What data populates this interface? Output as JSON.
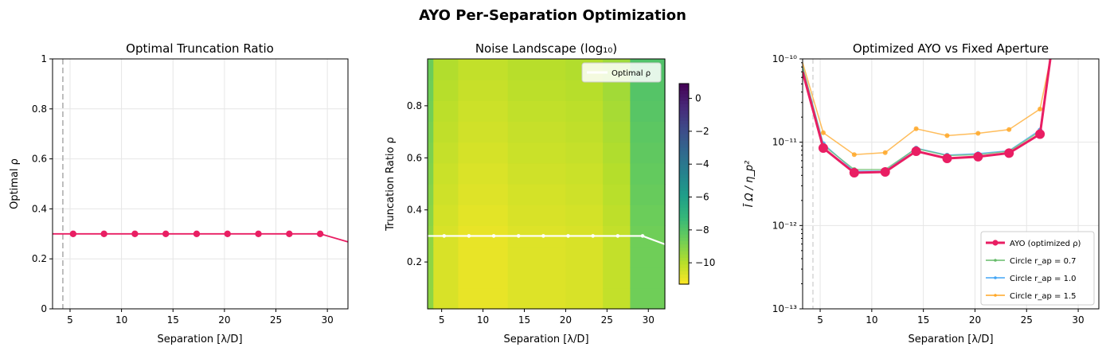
{
  "figure_title": "AYO Per-Separation Optimization",
  "chart_data": [
    {
      "type": "line",
      "title": "Optimal Truncation Ratio",
      "xlabel": "Separation [λ/D]",
      "ylabel": "Optimal ρ",
      "xlim": [
        3.3,
        32
      ],
      "ylim": [
        0,
        1
      ],
      "xticks": [
        5,
        10,
        15,
        20,
        25,
        30
      ],
      "yticks": [
        0.0,
        0.2,
        0.4,
        0.6,
        0.8,
        1.0
      ],
      "grid": true,
      "vline_x": 4.3,
      "line_color": "#e91e63",
      "series": [
        {
          "x": [
            3.3,
            5.3,
            8.3,
            11.3,
            14.3,
            17.3,
            20.3,
            23.3,
            26.3,
            29.3,
            32
          ],
          "y": [
            0.3,
            0.3,
            0.3,
            0.3,
            0.3,
            0.3,
            0.3,
            0.3,
            0.3,
            0.3,
            0.268
          ],
          "markers_x": [
            5.3,
            8.3,
            11.3,
            14.3,
            17.3,
            20.3,
            23.3,
            26.3,
            29.3
          ]
        }
      ]
    },
    {
      "type": "heatmap",
      "title": "Noise Landscape (log₁₀)",
      "xlabel": "Separation [λ/D]",
      "ylabel": "Truncation Ratio ρ",
      "xlim": [
        3.3,
        32
      ],
      "ylim": [
        0.02,
        0.98
      ],
      "xticks": [
        5,
        10,
        15,
        20,
        25,
        30
      ],
      "yticks": [
        0.2,
        0.4,
        0.6,
        0.8
      ],
      "colorbar_ticks": [
        0,
        -2,
        -4,
        -6,
        -8,
        -10
      ],
      "colorbar_range": [
        -11.3,
        0.9
      ],
      "colormap": "viridis_r",
      "column_edges": [
        3.3,
        4.0,
        7.0,
        13.0,
        20.0,
        24.5,
        27.8,
        32.0
      ],
      "column_values": [
        -9.2,
        -10.6,
        -10.9,
        -10.7,
        -10.6,
        -10.2,
        -8.6
      ],
      "legend": [
        {
          "label": "Optimal ρ",
          "color": "#ffffff"
        }
      ],
      "overlay": {
        "x": [
          3.3,
          5.3,
          8.3,
          11.3,
          14.3,
          17.3,
          20.3,
          23.3,
          26.3,
          29.3,
          32
        ],
        "y": [
          0.3,
          0.3,
          0.3,
          0.3,
          0.3,
          0.3,
          0.3,
          0.3,
          0.3,
          0.3,
          0.268
        ],
        "markers_x": [
          5.3,
          8.3,
          11.3,
          14.3,
          17.3,
          20.3,
          23.3,
          26.3,
          29.3
        ]
      }
    },
    {
      "type": "line",
      "title": "Optimized AYO vs Fixed Aperture",
      "xlabel": "Separation [λ/D]",
      "ylabel": "Ī Ω / η_p²",
      "yscale": "log",
      "xlim": [
        3.3,
        32
      ],
      "ylim": [
        1e-13,
        1e-10
      ],
      "xticks": [
        5,
        10,
        15,
        20,
        25,
        30
      ],
      "ytick_labels": [
        "10⁻¹³",
        "10⁻¹²",
        "10⁻¹¹",
        "10⁻¹⁰"
      ],
      "ytick_values": [
        1e-13,
        1e-12,
        1e-11,
        1e-10
      ],
      "grid": true,
      "vline_x": 4.3,
      "legend_position": "lower-right",
      "series": [
        {
          "name": "AYO (optimized ρ)",
          "color": "#e91e63",
          "width": 3,
          "marker": 6,
          "x": [
            3.3,
            5.3,
            8.3,
            11.3,
            14.3,
            17.3,
            20.3,
            23.3,
            26.3,
            27.3
          ],
          "y": [
            7e-11,
            8.5e-12,
            4.3e-12,
            4.4e-12,
            7.8e-12,
            6.4e-12,
            6.7e-12,
            7.4e-12,
            1.25e-11,
            1e-10
          ]
        },
        {
          "name": "Circle r_ap = 0.7",
          "color": "#66bb6a",
          "width": 1.5,
          "marker": 3,
          "x": [
            3.3,
            5.3,
            8.3,
            11.3,
            14.3,
            17.3,
            20.3,
            23.3,
            26.3,
            27.3
          ],
          "y": [
            8e-11,
            9.2e-12,
            4.7e-12,
            4.7e-12,
            8.4e-12,
            6.9e-12,
            7.1e-12,
            7.8e-12,
            1.35e-11,
            1e-10
          ]
        },
        {
          "name": "Circle r_ap = 1.0",
          "color": "#42a5f5",
          "width": 1.5,
          "marker": 3,
          "x": [
            3.3,
            5.3,
            8.3,
            11.3,
            14.3,
            17.3,
            20.3,
            23.3,
            26.3,
            27.3
          ],
          "y": [
            8e-11,
            9.6e-12,
            4.5e-12,
            4.5e-12,
            8.5e-12,
            7e-12,
            7.3e-12,
            7.9e-12,
            1.4e-11,
            1e-10
          ]
        },
        {
          "name": "Circle r_ap = 1.5",
          "color": "#ffa726",
          "width": 1.5,
          "marker": 3,
          "x": [
            3.3,
            5.3,
            8.3,
            11.3,
            14.3,
            17.3,
            20.3,
            23.3,
            26.3,
            27.3
          ],
          "y": [
            9e-11,
            1.3e-11,
            7.1e-12,
            7.5e-12,
            1.45e-11,
            1.2e-11,
            1.28e-11,
            1.42e-11,
            2.5e-11,
            1e-10
          ]
        }
      ]
    }
  ]
}
